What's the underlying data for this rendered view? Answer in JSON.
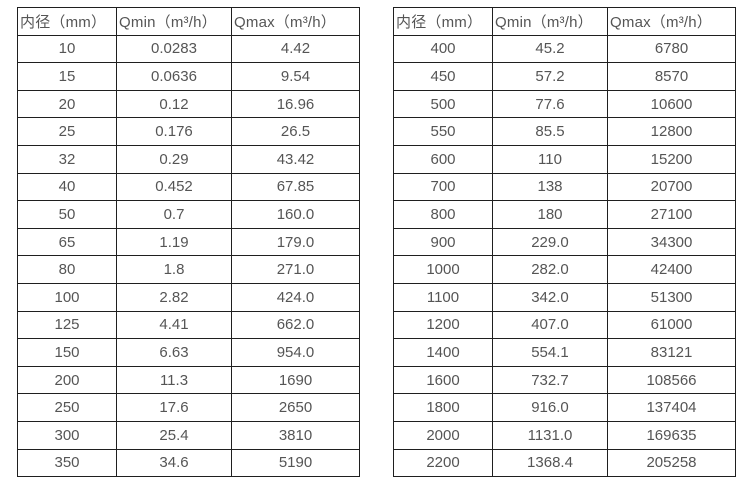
{
  "page": {
    "background_color": "#ffffff",
    "border_color": "#1f1f1f",
    "text_color": "#555555"
  },
  "chart_data": [
    {
      "type": "table",
      "name": "flow-rate-table-small-diameters",
      "columns": [
        "内径（mm）",
        "Qmin（m³/h）",
        "Qmax（m³/h）"
      ],
      "rows": [
        [
          "10",
          "0.0283",
          "4.42"
        ],
        [
          "15",
          "0.0636",
          "9.54"
        ],
        [
          "20",
          "0.12",
          "16.96"
        ],
        [
          "25",
          "0.176",
          "26.5"
        ],
        [
          "32",
          "0.29",
          "43.42"
        ],
        [
          "40",
          "0.452",
          "67.85"
        ],
        [
          "50",
          "0.7",
          "160.0"
        ],
        [
          "65",
          "1.19",
          "179.0"
        ],
        [
          "80",
          "1.8",
          "271.0"
        ],
        [
          "100",
          "2.82",
          "424.0"
        ],
        [
          "125",
          "4.41",
          "662.0"
        ],
        [
          "150",
          "6.63",
          "954.0"
        ],
        [
          "200",
          "11.3",
          "1690"
        ],
        [
          "250",
          "17.6",
          "2650"
        ],
        [
          "300",
          "25.4",
          "3810"
        ],
        [
          "350",
          "34.6",
          "5190"
        ]
      ]
    },
    {
      "type": "table",
      "name": "flow-rate-table-large-diameters",
      "columns": [
        "内径（mm）",
        "Qmin（m³/h）",
        "Qmax（m³/h）"
      ],
      "rows": [
        [
          "400",
          "45.2",
          "6780"
        ],
        [
          "450",
          "57.2",
          "8570"
        ],
        [
          "500",
          "77.6",
          "10600"
        ],
        [
          "550",
          "85.5",
          "12800"
        ],
        [
          "600",
          "110",
          "15200"
        ],
        [
          "700",
          "138",
          "20700"
        ],
        [
          "800",
          "180",
          "27100"
        ],
        [
          "900",
          "229.0",
          "34300"
        ],
        [
          "1000",
          "282.0",
          "42400"
        ],
        [
          "1100",
          "342.0",
          "51300"
        ],
        [
          "1200",
          "407.0",
          "61000"
        ],
        [
          "1400",
          "554.1",
          "83121"
        ],
        [
          "1600",
          "732.7",
          "108566"
        ],
        [
          "1800",
          "916.0",
          "137404"
        ],
        [
          "2000",
          "1131.0",
          "169635"
        ],
        [
          "2200",
          "1368.4",
          "205258"
        ]
      ]
    }
  ]
}
